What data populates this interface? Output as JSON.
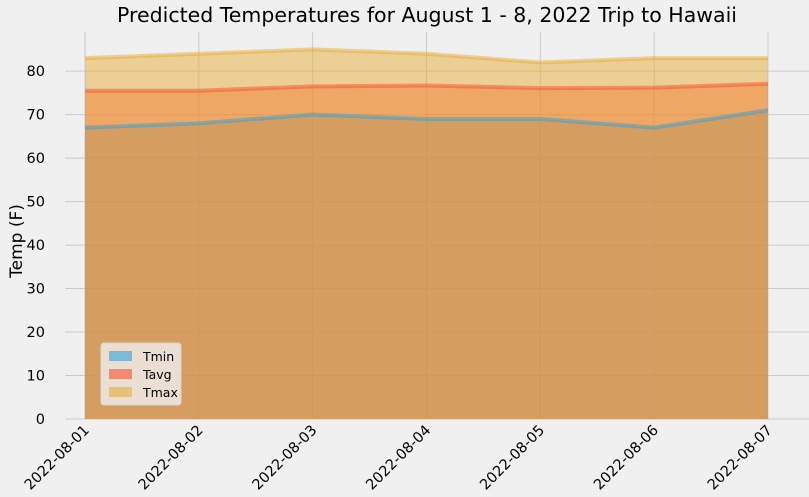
{
  "chart_data": {
    "type": "area",
    "title": "Predicted Temperatures for August 1 - 8, 2022 Trip to Hawaii",
    "xlabel": "",
    "ylabel": "Temp (F)",
    "categories": [
      "2022-08-01",
      "2022-08-02",
      "2022-08-03",
      "2022-08-04",
      "2022-08-05",
      "2022-08-06",
      "2022-08-07"
    ],
    "yticks": [
      "0",
      "10",
      "20",
      "30",
      "40",
      "50",
      "60",
      "70",
      "80"
    ],
    "ylim": [
      0,
      89
    ],
    "stacked": false,
    "grid": true,
    "legend_position": "lower-left",
    "series": [
      {
        "name": "Tmin",
        "values": [
          67,
          68,
          70,
          69,
          69,
          67,
          71
        ],
        "color": "#30a2da"
      },
      {
        "name": "Tavg",
        "values": [
          75.5,
          75.5,
          76.5,
          76.7,
          76.1,
          76.2,
          77.1
        ],
        "color": "#fc4f30"
      },
      {
        "name": "Tmax",
        "values": [
          83,
          84,
          85,
          84,
          82,
          83,
          83
        ],
        "color": "#e5ae38"
      }
    ]
  }
}
